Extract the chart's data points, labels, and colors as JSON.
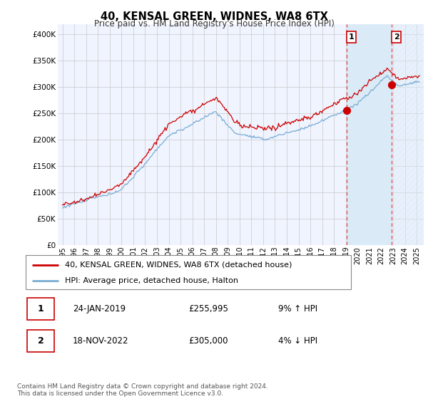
{
  "title": "40, KENSAL GREEN, WIDNES, WA8 6TX",
  "subtitle": "Price paid vs. HM Land Registry's House Price Index (HPI)",
  "ylabel_ticks": [
    "£0",
    "£50K",
    "£100K",
    "£150K",
    "£200K",
    "£250K",
    "£300K",
    "£350K",
    "£400K"
  ],
  "ytick_values": [
    0,
    50000,
    100000,
    150000,
    200000,
    250000,
    300000,
    350000,
    400000
  ],
  "ylim": [
    0,
    420000
  ],
  "xlim_start": 1994.6,
  "xlim_end": 2025.6,
  "x_tick_labels": [
    "1995",
    "1996",
    "1997",
    "1998",
    "1999",
    "2000",
    "2001",
    "2002",
    "2003",
    "2004",
    "2005",
    "2006",
    "2007",
    "2008",
    "2009",
    "2010",
    "2011",
    "2012",
    "2013",
    "2014",
    "2015",
    "2016",
    "2017",
    "2018",
    "2019",
    "2020",
    "2021",
    "2022",
    "2023",
    "2024",
    "2025"
  ],
  "hpi_color": "#7aadd4",
  "price_color": "#cc0000",
  "vline_color": "#ee4444",
  "shade_color": "#daeaf7",
  "hatch_color": "#c8d8e8",
  "point1_x": 2019.07,
  "point1_y": 255995,
  "point2_x": 2022.88,
  "point2_y": 305000,
  "legend_label1": "40, KENSAL GREEN, WIDNES, WA8 6TX (detached house)",
  "legend_label2": "HPI: Average price, detached house, Halton",
  "note1_date": "24-JAN-2019",
  "note1_price": "£255,995",
  "note1_hpi": "9% ↑ HPI",
  "note2_date": "18-NOV-2022",
  "note2_price": "£305,000",
  "note2_hpi": "4% ↓ HPI",
  "footer": "Contains HM Land Registry data © Crown copyright and database right 2024.\nThis data is licensed under the Open Government Licence v3.0.",
  "background_color": "#ffffff",
  "plot_bg_color": "#f0f4ff"
}
